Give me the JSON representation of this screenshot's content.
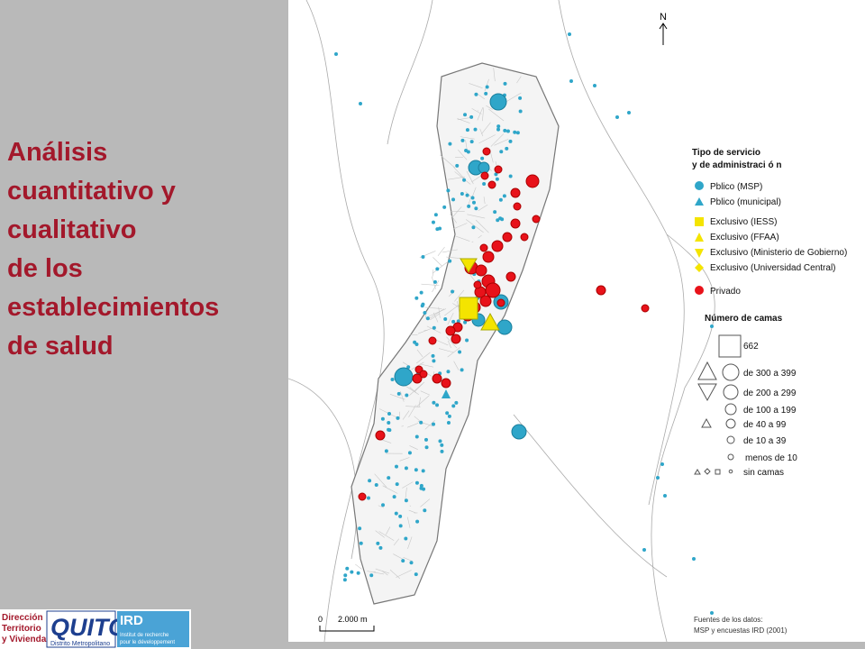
{
  "title": {
    "lines": [
      "Análisis",
      "cuantitativo y",
      "cualitativo",
      "de los",
      "establecimientos",
      "de salud"
    ]
  },
  "map": {
    "north": "N",
    "legend": {
      "heading": [
        "Tipo de servicio",
        "y de administraci ó n"
      ],
      "types": [
        "Pblico (MSP)",
        "Pblico (municipal)",
        "Exclusivo (IESS)",
        "Exclusivo (FFAA)",
        "Exclusivo (Ministerio de Gobierno)",
        "Exclusivo (Universidad Central)",
        "Privado"
      ],
      "size_heading": "Número de camas",
      "sizes": [
        "662",
        "de 300 a 399",
        "de 200 a 299",
        "de 100 a 199",
        "de 40 a 99",
        "de 10 a 39",
        "menos de 10",
        "sin camas"
      ]
    },
    "scale": {
      "start": "0",
      "end": "2.000 m"
    },
    "source": [
      "Fuentes de los datos:",
      "MSP y encuestas IRD (2001)"
    ]
  },
  "logos": {
    "direccion": [
      "Dirección",
      "Territorio",
      "y Vivienda"
    ],
    "quito": [
      "QUITO",
      "Distrito Metropolitano"
    ],
    "ird": [
      "IRD",
      "Institut de recherche",
      "pour le développement"
    ]
  }
}
